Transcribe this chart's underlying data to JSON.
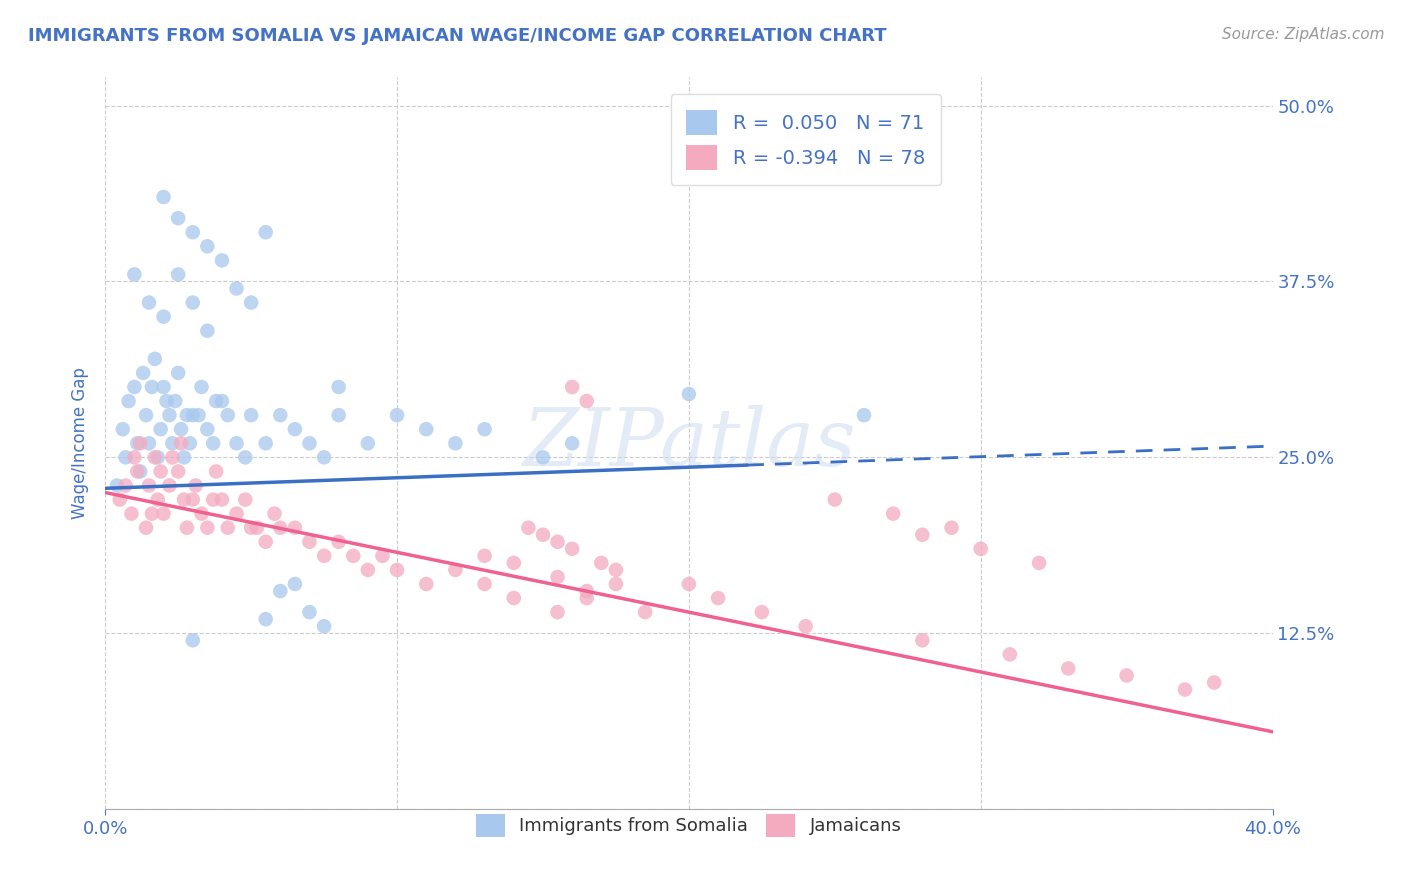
{
  "title": "IMMIGRANTS FROM SOMALIA VS JAMAICAN WAGE/INCOME GAP CORRELATION CHART",
  "source": "Source: ZipAtlas.com",
  "ylabel": "Wage/Income Gap",
  "xmin": 0.0,
  "xmax": 0.4,
  "ymin": 0.0,
  "ymax": 0.52,
  "blue_R": 0.05,
  "blue_N": 71,
  "pink_R": -0.394,
  "pink_N": 78,
  "blue_color": "#A8C8EE",
  "pink_color": "#F4AABF",
  "blue_line_color": "#3A6FC4",
  "pink_line_color": "#F06090",
  "watermark": "ZIPatlas",
  "legend_text_color": "#4472C4",
  "title_color": "#4472C4",
  "background_color": "#FFFFFF",
  "blue_line_y0": 0.228,
  "blue_line_y1": 0.258,
  "blue_line_solid_end": 0.22,
  "pink_line_y0": 0.225,
  "pink_line_y1": 0.055,
  "grid_color": "#CCCCCC",
  "tick_color": "#4472C4",
  "blue_scatter_x": [
    0.004,
    0.006,
    0.007,
    0.008,
    0.01,
    0.011,
    0.012,
    0.013,
    0.014,
    0.015,
    0.016,
    0.017,
    0.018,
    0.019,
    0.02,
    0.021,
    0.022,
    0.023,
    0.024,
    0.025,
    0.026,
    0.027,
    0.028,
    0.029,
    0.03,
    0.032,
    0.033,
    0.035,
    0.037,
    0.038,
    0.04,
    0.042,
    0.045,
    0.048,
    0.05,
    0.055,
    0.06,
    0.065,
    0.07,
    0.075,
    0.08,
    0.09,
    0.1,
    0.11,
    0.12,
    0.13,
    0.15,
    0.16,
    0.01,
    0.015,
    0.02,
    0.025,
    0.03,
    0.035,
    0.02,
    0.025,
    0.03,
    0.035,
    0.04,
    0.045,
    0.05,
    0.055,
    0.08,
    0.2,
    0.26,
    0.03,
    0.055,
    0.06,
    0.065,
    0.07,
    0.075
  ],
  "blue_scatter_y": [
    0.23,
    0.27,
    0.25,
    0.29,
    0.3,
    0.26,
    0.24,
    0.31,
    0.28,
    0.26,
    0.3,
    0.32,
    0.25,
    0.27,
    0.3,
    0.29,
    0.28,
    0.26,
    0.29,
    0.31,
    0.27,
    0.25,
    0.28,
    0.26,
    0.28,
    0.28,
    0.3,
    0.27,
    0.26,
    0.29,
    0.29,
    0.28,
    0.26,
    0.25,
    0.28,
    0.26,
    0.28,
    0.27,
    0.26,
    0.25,
    0.28,
    0.26,
    0.28,
    0.27,
    0.26,
    0.27,
    0.25,
    0.26,
    0.38,
    0.36,
    0.35,
    0.38,
    0.36,
    0.34,
    0.435,
    0.42,
    0.41,
    0.4,
    0.39,
    0.37,
    0.36,
    0.41,
    0.3,
    0.295,
    0.28,
    0.12,
    0.135,
    0.155,
    0.16,
    0.14,
    0.13
  ],
  "pink_scatter_x": [
    0.005,
    0.007,
    0.009,
    0.01,
    0.011,
    0.012,
    0.014,
    0.015,
    0.016,
    0.017,
    0.018,
    0.019,
    0.02,
    0.022,
    0.023,
    0.025,
    0.026,
    0.027,
    0.028,
    0.03,
    0.031,
    0.033,
    0.035,
    0.037,
    0.038,
    0.04,
    0.042,
    0.045,
    0.048,
    0.05,
    0.052,
    0.055,
    0.058,
    0.06,
    0.065,
    0.07,
    0.075,
    0.08,
    0.085,
    0.09,
    0.095,
    0.1,
    0.11,
    0.12,
    0.13,
    0.14,
    0.155,
    0.165,
    0.175,
    0.185,
    0.2,
    0.21,
    0.225,
    0.24,
    0.13,
    0.14,
    0.155,
    0.165,
    0.175,
    0.145,
    0.15,
    0.155,
    0.16,
    0.17,
    0.28,
    0.31,
    0.33,
    0.35,
    0.37,
    0.38,
    0.16,
    0.165,
    0.28,
    0.3,
    0.32,
    0.25,
    0.27,
    0.29
  ],
  "pink_scatter_y": [
    0.22,
    0.23,
    0.21,
    0.25,
    0.24,
    0.26,
    0.2,
    0.23,
    0.21,
    0.25,
    0.22,
    0.24,
    0.21,
    0.23,
    0.25,
    0.24,
    0.26,
    0.22,
    0.2,
    0.22,
    0.23,
    0.21,
    0.2,
    0.22,
    0.24,
    0.22,
    0.2,
    0.21,
    0.22,
    0.2,
    0.2,
    0.19,
    0.21,
    0.2,
    0.2,
    0.19,
    0.18,
    0.19,
    0.18,
    0.17,
    0.18,
    0.17,
    0.16,
    0.17,
    0.16,
    0.15,
    0.14,
    0.15,
    0.16,
    0.14,
    0.16,
    0.15,
    0.14,
    0.13,
    0.18,
    0.175,
    0.165,
    0.155,
    0.17,
    0.2,
    0.195,
    0.19,
    0.185,
    0.175,
    0.12,
    0.11,
    0.1,
    0.095,
    0.085,
    0.09,
    0.3,
    0.29,
    0.195,
    0.185,
    0.175,
    0.22,
    0.21,
    0.2
  ]
}
